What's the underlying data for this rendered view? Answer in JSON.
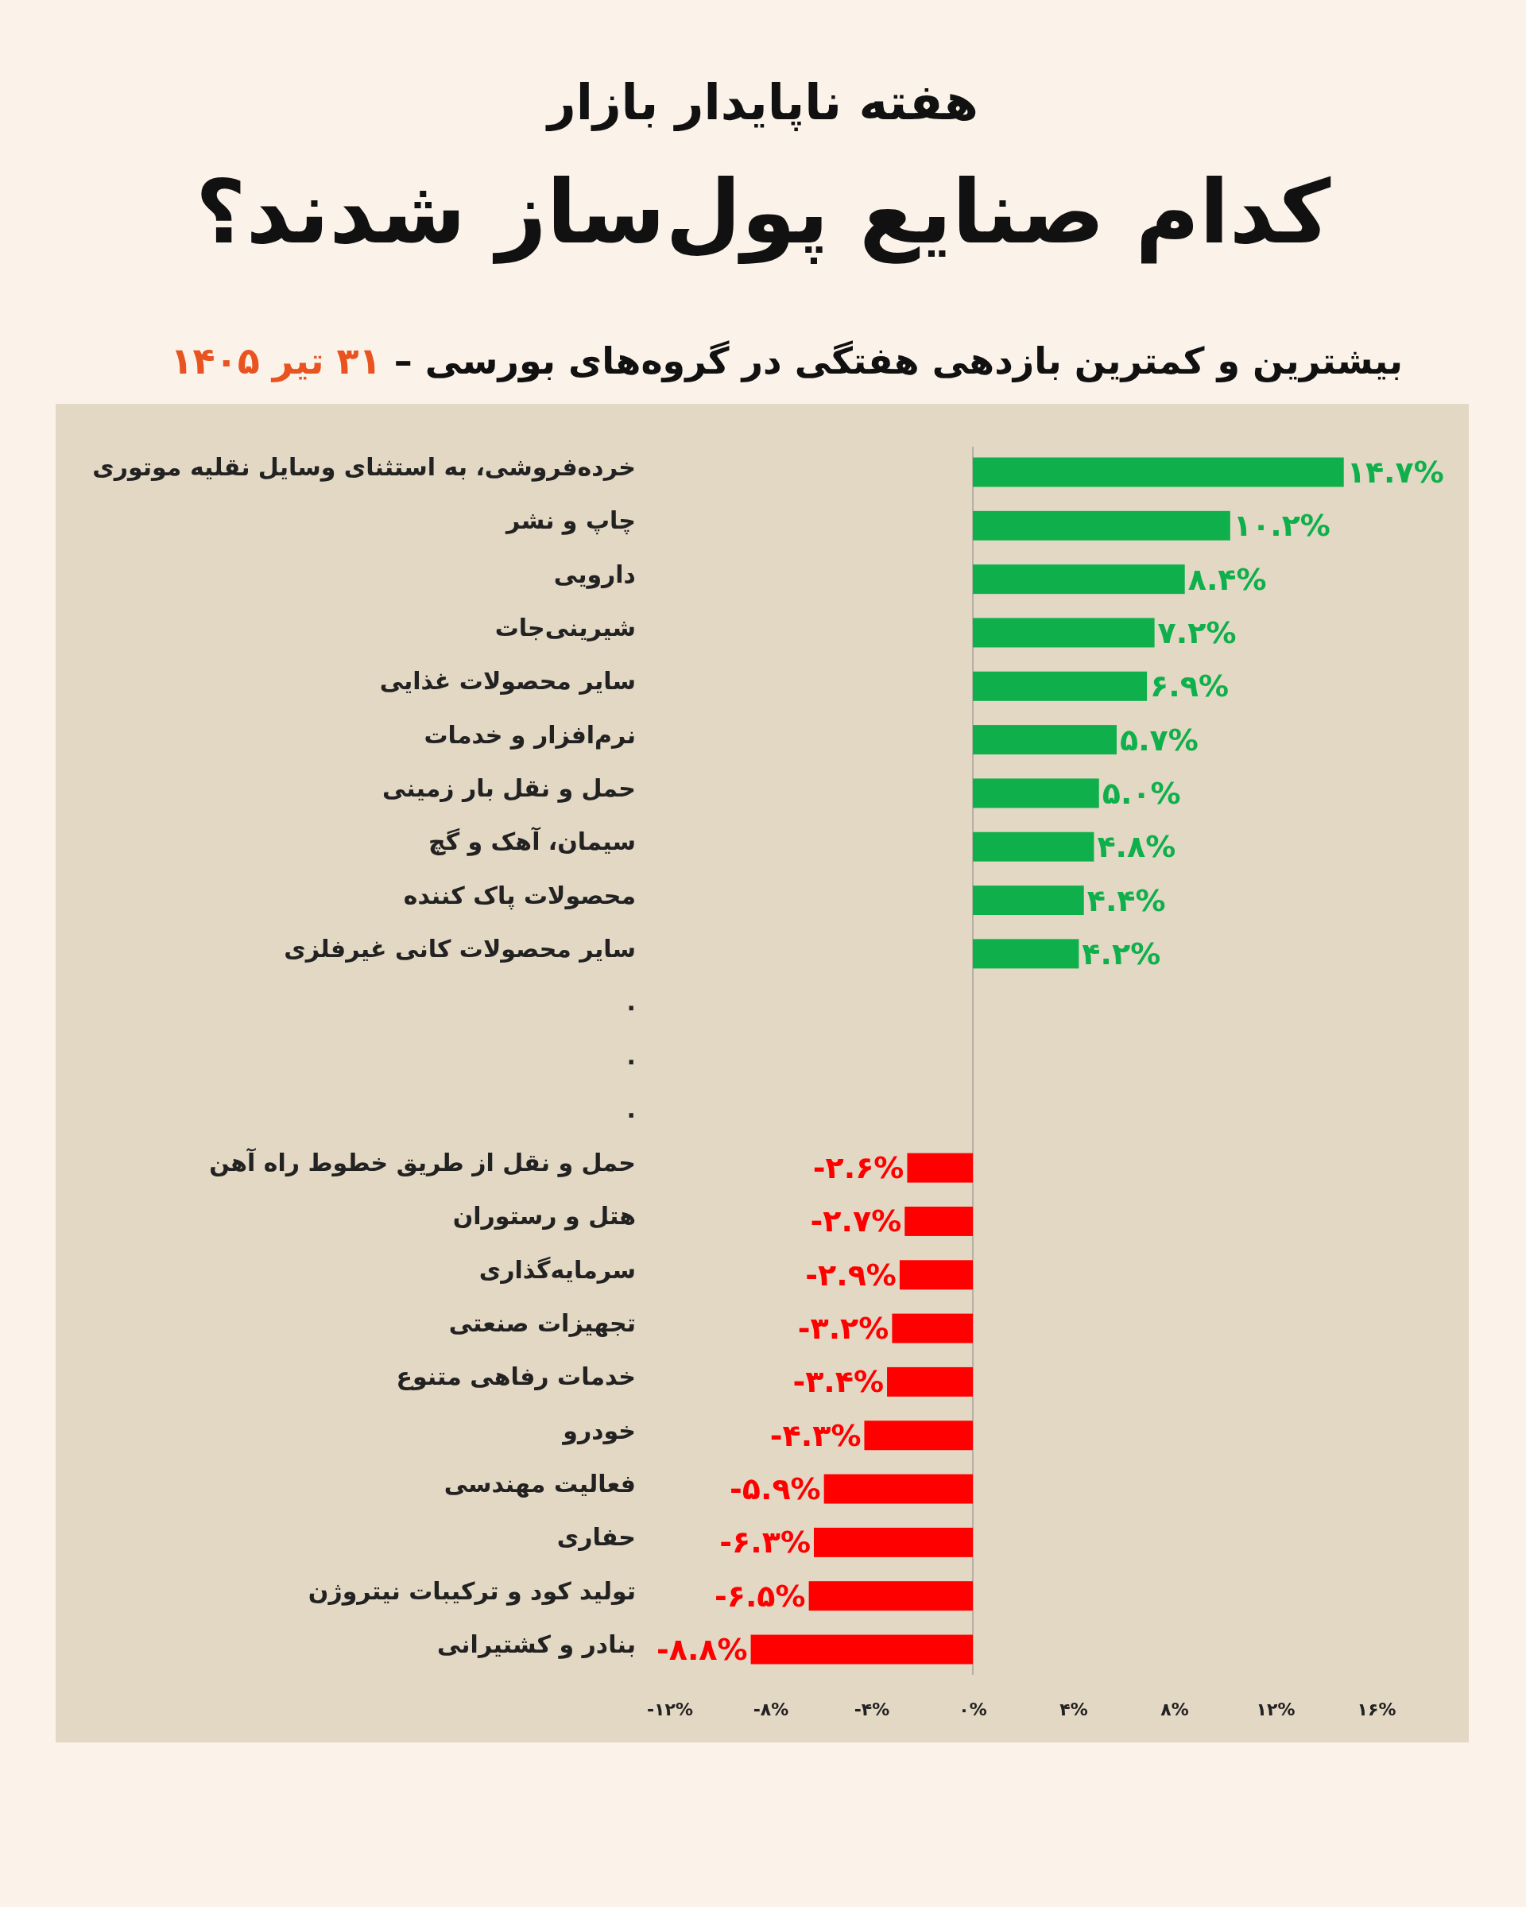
{
  "chart_data": {
    "type": "bar",
    "orientation": "horizontal",
    "title": "کدام صنایع پول‌ساز شدند؟",
    "subtitle": "هفته ناپایدار بازار",
    "annotations": [
      "بیشترین و کمترین بازدهی هفتگی در گروه‌های بورسی –",
      "۳۱ تیر ۱۴۰۵"
    ],
    "categories": [
      "خرده‌فروشی، به استثنای وسایل نقلیه موتوری",
      "چاپ و نشر",
      "دارویی",
      "شیرینی‌جات",
      "سایر محصولات غذایی",
      "نرم‌افزار و خدمات",
      "حمل و نقل بار زمینی",
      "سیمان، آهک و گچ",
      "محصولات پاک کننده",
      "سایر محصولات کانی غیرفلزی",
      ".",
      ".",
      ".",
      "حمل و نقل از طریق خطوط راه آهن",
      "هتل و رستوران",
      "سرمایه‌گذاری",
      "تجهیزات صنعتی",
      "خدمات رفاهی متنوع",
      "خودرو",
      "فعالیت مهندسی",
      "حفاری",
      "تولید کود و ترکیبات نیتروژن",
      "بنادر و کشتیرانی"
    ],
    "values": [
      14.7,
      10.2,
      8.4,
      7.2,
      6.9,
      5.7,
      5.0,
      4.8,
      4.4,
      4.2,
      null,
      null,
      null,
      -2.6,
      -2.7,
      -2.9,
      -3.2,
      -3.4,
      -4.3,
      -5.9,
      -6.3,
      -6.5,
      -8.8
    ],
    "value_labels": [
      "۱۴.۷%",
      "۱۰.۲%",
      "۸.۴%",
      "۷.۲%",
      "۶.۹%",
      "۵.۷%",
      "۵.۰%",
      "۴.۸%",
      "۴.۴%",
      "۴.۲%",
      null,
      null,
      null,
      "-۲.۶%",
      "-۲.۷%",
      "-۲.۹%",
      "-۳.۲%",
      "-۳.۴%",
      "-۴.۳%",
      "-۵.۹%",
      "-۶.۳%",
      "-۶.۵%",
      "-۸.۸%"
    ],
    "colors": [
      "#0fb04c",
      "#0fb04c",
      "#0fb04c",
      "#0fb04c",
      "#0fb04c",
      "#0fb04c",
      "#0fb04c",
      "#0fb04c",
      "#0fb04c",
      "#0fb04c",
      null,
      null,
      null,
      "#fe0000",
      "#fe0000",
      "#fe0000",
      "#fe0000",
      "#fe0000",
      "#fe0000",
      "#fe0000",
      "#fe0000",
      "#fe0000",
      "#fe0000"
    ],
    "xlim": [
      -12,
      16
    ],
    "xticks": [
      {
        "value": -12,
        "label": "-۱۲%"
      },
      {
        "value": -8,
        "label": "-۸%"
      },
      {
        "value": -4,
        "label": "-۴%"
      },
      {
        "value": 0,
        "label": "۰%"
      },
      {
        "value": 4,
        "label": "۴%"
      },
      {
        "value": 8,
        "label": "۸%"
      },
      {
        "value": 12,
        "label": "۱۲%"
      },
      {
        "value": 16,
        "label": "۱۶%"
      }
    ],
    "ref_lines": [
      {
        "axis": "x",
        "value": 0,
        "color": "#a8a29a"
      }
    ]
  }
}
